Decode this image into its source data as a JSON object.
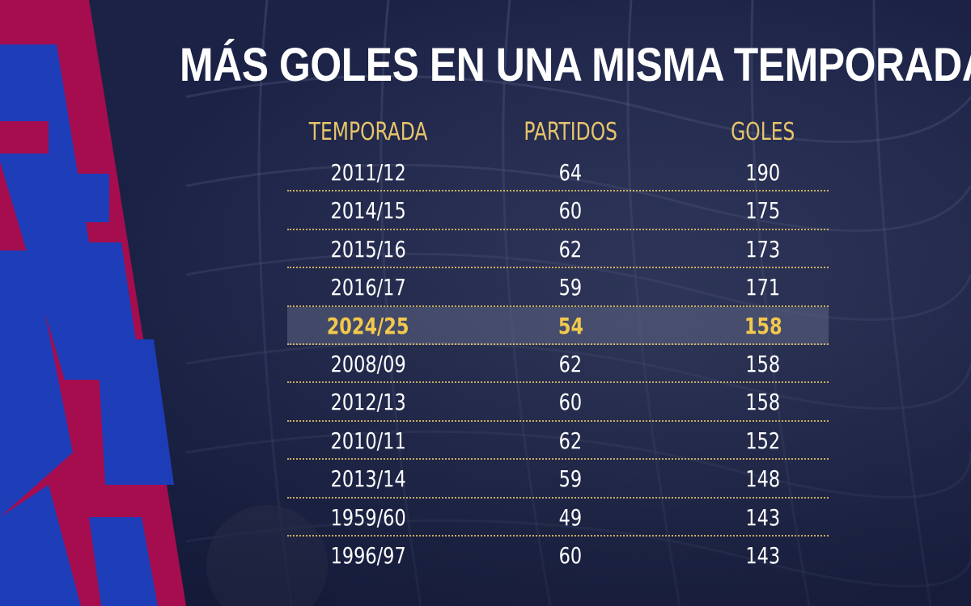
{
  "title": "MÁS GOLES EN UNA MISMA TEMPORADA",
  "headers": {
    "season": "TEMPORADA",
    "matches": "PARTIDOS",
    "goals": "GOLES"
  },
  "rows": [
    {
      "season": "2011/12",
      "matches": "64",
      "goals": "190",
      "highlight": false
    },
    {
      "season": "2014/15",
      "matches": "60",
      "goals": "175",
      "highlight": false
    },
    {
      "season": "2015/16",
      "matches": "62",
      "goals": "173",
      "highlight": false
    },
    {
      "season": "2016/17",
      "matches": "59",
      "goals": "171",
      "highlight": false
    },
    {
      "season": "2024/25",
      "matches": "54",
      "goals": "158",
      "highlight": true
    },
    {
      "season": "2008/09",
      "matches": "62",
      "goals": "158",
      "highlight": false
    },
    {
      "season": "2012/13",
      "matches": "60",
      "goals": "158",
      "highlight": false
    },
    {
      "season": "2010/11",
      "matches": "62",
      "goals": "152",
      "highlight": false
    },
    {
      "season": "2013/14",
      "matches": "59",
      "goals": "148",
      "highlight": false
    },
    {
      "season": "1959/60",
      "matches": "49",
      "goals": "143",
      "highlight": false
    },
    {
      "season": "1996/97",
      "matches": "60",
      "goals": "143",
      "highlight": false
    }
  ],
  "colors": {
    "background": "#1b2246",
    "header_gold": "#e8c46a",
    "highlight_gold": "#f2c94c",
    "blaugrana_red": "#a50d4e",
    "blaugrana_blue": "#1d3db8"
  }
}
